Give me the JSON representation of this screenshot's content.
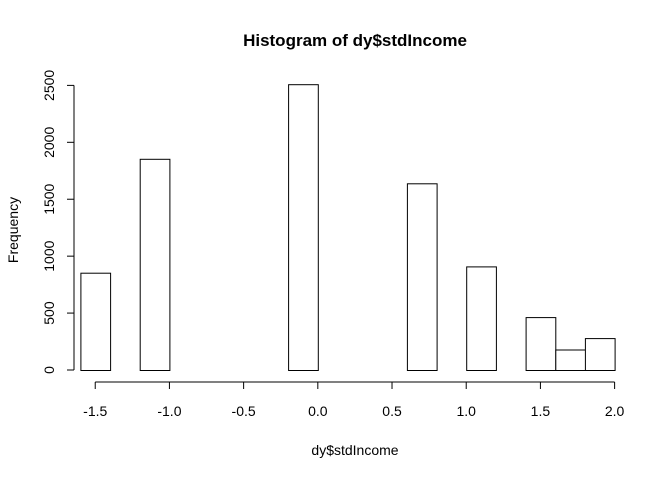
{
  "chart_data": {
    "type": "bar",
    "title": "Histogram of dy$stdIncome",
    "xlabel": "dy$stdIncome",
    "ylabel": "Frequency",
    "bin_width": 0.2,
    "bins": [
      {
        "x0": -1.6,
        "x1": -1.4,
        "count": 855
      },
      {
        "x0": -1.4,
        "x1": -1.2,
        "count": 0
      },
      {
        "x0": -1.2,
        "x1": -1.0,
        "count": 1855
      },
      {
        "x0": -1.0,
        "x1": -0.8,
        "count": 0
      },
      {
        "x0": -0.8,
        "x1": -0.6,
        "count": 0
      },
      {
        "x0": -0.6,
        "x1": -0.4,
        "count": 0
      },
      {
        "x0": -0.4,
        "x1": -0.2,
        "count": 0
      },
      {
        "x0": -0.2,
        "x1": 0.0,
        "count": 2510
      },
      {
        "x0": 0.0,
        "x1": 0.2,
        "count": 0
      },
      {
        "x0": 0.2,
        "x1": 0.4,
        "count": 0
      },
      {
        "x0": 0.4,
        "x1": 0.6,
        "count": 0
      },
      {
        "x0": 0.6,
        "x1": 0.8,
        "count": 1640
      },
      {
        "x0": 0.8,
        "x1": 1.0,
        "count": 0
      },
      {
        "x0": 1.0,
        "x1": 1.2,
        "count": 910
      },
      {
        "x0": 1.2,
        "x1": 1.4,
        "count": 0
      },
      {
        "x0": 1.4,
        "x1": 1.6,
        "count": 465
      },
      {
        "x0": 1.6,
        "x1": 1.8,
        "count": 180
      },
      {
        "x0": 1.8,
        "x1": 2.0,
        "count": 280
      }
    ],
    "x_ticks": [
      {
        "value": -1.5,
        "label": "-1.5"
      },
      {
        "value": -1.0,
        "label": "-1.0"
      },
      {
        "value": -0.5,
        "label": "-0.5"
      },
      {
        "value": 0.0,
        "label": "0.0"
      },
      {
        "value": 0.5,
        "label": "0.5"
      },
      {
        "value": 1.0,
        "label": "1.0"
      },
      {
        "value": 1.5,
        "label": "1.5"
      },
      {
        "value": 2.0,
        "label": "2.0"
      }
    ],
    "y_ticks": [
      {
        "value": 0,
        "label": "0"
      },
      {
        "value": 500,
        "label": "500"
      },
      {
        "value": 1000,
        "label": "1000"
      },
      {
        "value": 1500,
        "label": "1500"
      },
      {
        "value": 2000,
        "label": "2000"
      },
      {
        "value": 2500,
        "label": "2500"
      }
    ],
    "xlim": [
      -1.67,
      2.07
    ],
    "ylim": [
      0,
      2600
    ],
    "grid": false,
    "legend": "none"
  }
}
